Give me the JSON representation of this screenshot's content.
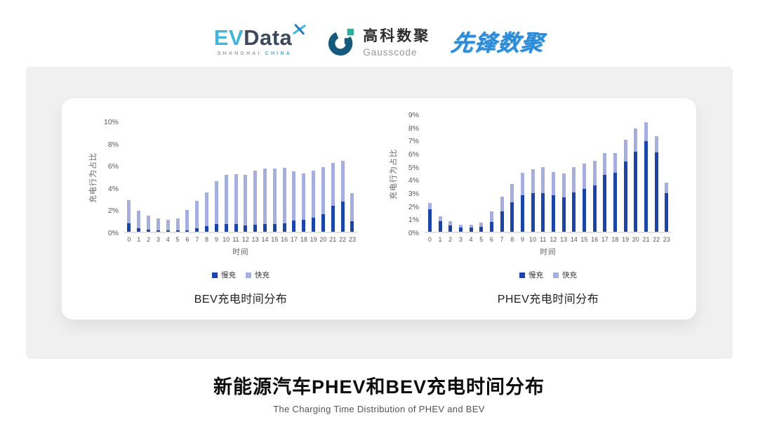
{
  "header": {
    "evdata": {
      "ev": "EV",
      "data": "Data",
      "sub_left": "SHANGHAI",
      "sub_right": "CHINA"
    },
    "gausscode": {
      "cn": "高科数聚",
      "en": "Gausscode"
    },
    "pioneer": {
      "text": "先锋数聚"
    }
  },
  "colors": {
    "slow_charge": "#1a44a8",
    "fast_charge": "#a6aedd",
    "band_bg": "#f0f0f1",
    "axis_text": "#595959",
    "baseline": "#e3e3e5"
  },
  "chart_data": [
    {
      "type": "bar",
      "stacked": true,
      "title": "BEV充电时间分布",
      "xlabel": "时间",
      "ylabel": "充电行为占比",
      "ylim": [
        0,
        10
      ],
      "yticks": [
        0,
        2,
        4,
        6,
        8,
        10
      ],
      "grid": false,
      "legend_position": "bottom",
      "categories": [
        "0",
        "1",
        "2",
        "3",
        "4",
        "5",
        "6",
        "7",
        "8",
        "9",
        "10",
        "11",
        "12",
        "13",
        "14",
        "15",
        "16",
        "17",
        "18",
        "19",
        "20",
        "21",
        "22",
        "23"
      ],
      "series": [
        {
          "name": "慢充",
          "color_key": "slow_charge",
          "values": [
            0.8,
            0.35,
            0.2,
            0.1,
            0.1,
            0.1,
            0.15,
            0.35,
            0.5,
            0.7,
            0.7,
            0.7,
            0.6,
            0.65,
            0.7,
            0.7,
            0.8,
            1.0,
            1.1,
            1.3,
            1.6,
            2.4,
            2.75,
            0.95
          ]
        },
        {
          "name": "快充",
          "color_key": "fast_charge",
          "values": [
            2.1,
            1.55,
            1.3,
            1.1,
            1.0,
            1.1,
            1.85,
            2.5,
            3.1,
            3.9,
            4.5,
            4.55,
            4.6,
            4.95,
            5.1,
            5.1,
            5.05,
            4.5,
            4.2,
            4.3,
            4.3,
            3.9,
            3.75,
            2.6
          ]
        }
      ]
    },
    {
      "type": "bar",
      "stacked": true,
      "title": "PHEV充电时间分布",
      "xlabel": "时间",
      "ylabel": "充电行为占比",
      "ylim": [
        0,
        9
      ],
      "yticks": [
        0,
        1,
        2,
        3,
        4,
        5,
        6,
        7,
        8,
        9
      ],
      "grid": false,
      "legend_position": "bottom",
      "categories": [
        "0",
        "1",
        "2",
        "3",
        "4",
        "5",
        "6",
        "7",
        "8",
        "9",
        "10",
        "11",
        "12",
        "13",
        "14",
        "15",
        "16",
        "17",
        "18",
        "19",
        "20",
        "21",
        "22",
        "23"
      ],
      "series": [
        {
          "name": "慢充",
          "color_key": "slow_charge",
          "values": [
            1.75,
            0.8,
            0.5,
            0.3,
            0.3,
            0.4,
            0.75,
            1.6,
            2.3,
            2.8,
            3.0,
            3.0,
            2.8,
            2.65,
            3.05,
            3.3,
            3.6,
            4.4,
            4.55,
            5.4,
            6.2,
            7.0,
            6.15,
            3.0
          ]
        },
        {
          "name": "快充",
          "color_key": "fast_charge",
          "values": [
            0.45,
            0.4,
            0.3,
            0.25,
            0.25,
            0.3,
            0.85,
            1.1,
            1.4,
            1.75,
            1.8,
            2.0,
            1.8,
            1.85,
            1.95,
            1.95,
            1.9,
            1.7,
            1.55,
            1.7,
            1.75,
            1.45,
            1.25,
            0.8
          ]
        }
      ]
    }
  ],
  "footer": {
    "title": "新能源汽车PHEV和BEV充电时间分布",
    "subtitle": "The Charging Time Distribution of PHEV and BEV"
  }
}
